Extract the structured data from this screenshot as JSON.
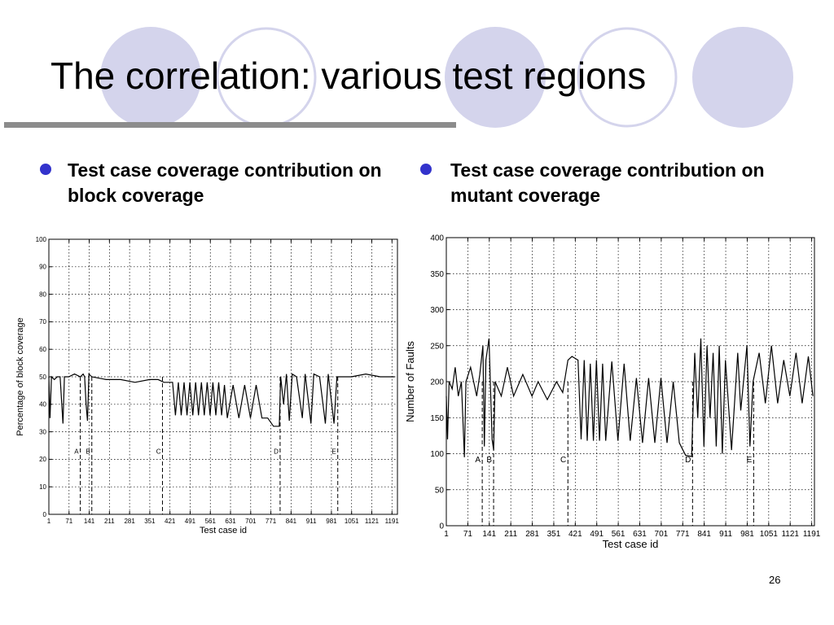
{
  "title": "The correlation: various test regions",
  "bullets": [
    "Test case coverage contribution on block coverage",
    "Test case coverage contribution on mutant coverage"
  ],
  "page_number": "26",
  "chart_data": [
    {
      "type": "line",
      "xlabel": "Test case id",
      "ylabel": "Percentage of block coverage",
      "xlim": [
        1,
        1210
      ],
      "ylim": [
        0,
        100
      ],
      "xticks": [
        1,
        71,
        141,
        211,
        281,
        351,
        421,
        491,
        561,
        631,
        701,
        771,
        841,
        911,
        981,
        1051,
        1121,
        1191
      ],
      "yticks": [
        0,
        10,
        20,
        30,
        40,
        50,
        60,
        70,
        80,
        90,
        100
      ],
      "grid": true,
      "annotations": [
        {
          "label": "A",
          "x": 110
        },
        {
          "label": "B",
          "x": 150
        },
        {
          "label": "C",
          "x": 395
        },
        {
          "label": "D",
          "x": 803
        },
        {
          "label": "E",
          "x": 1003
        }
      ],
      "series": [
        {
          "color": "#000000",
          "x": [
            1,
            5,
            10,
            20,
            30,
            40,
            50,
            55,
            70,
            90,
            110,
            120,
            125,
            130,
            135,
            140,
            150,
            200,
            250,
            300,
            350,
            380,
            400,
            420,
            430,
            440,
            450,
            460,
            470,
            480,
            490,
            500,
            510,
            520,
            530,
            540,
            550,
            560,
            570,
            580,
            590,
            600,
            610,
            620,
            640,
            660,
            680,
            700,
            720,
            740,
            760,
            780,
            800,
            805,
            815,
            825,
            835,
            845,
            860,
            880,
            890,
            910,
            920,
            940,
            960,
            970,
            990,
            1000,
            1050,
            1100,
            1150,
            1200
          ],
          "values": [
            50,
            35,
            50,
            49,
            50,
            50,
            33,
            50,
            50,
            51,
            50,
            51,
            50,
            40,
            34,
            51,
            50,
            49,
            49,
            48,
            49,
            49,
            48,
            48,
            48,
            36,
            48,
            36,
            48,
            36,
            48,
            36,
            48,
            36,
            48,
            36,
            48,
            36,
            48,
            36,
            48,
            36,
            47,
            35,
            47,
            35,
            47,
            35,
            47,
            35,
            35,
            32,
            32,
            50,
            40,
            51,
            34,
            51,
            50,
            35,
            51,
            33,
            51,
            50,
            33,
            51,
            33,
            50,
            50,
            51,
            50,
            50
          ]
        }
      ]
    },
    {
      "type": "line",
      "xlabel": "Test case id",
      "ylabel": "Number of Faults",
      "xlim": [
        1,
        1200
      ],
      "ylim": [
        0,
        400
      ],
      "xticks": [
        1,
        71,
        141,
        211,
        281,
        351,
        421,
        491,
        561,
        631,
        701,
        771,
        841,
        911,
        981,
        1051,
        1121,
        1191
      ],
      "yticks": [
        0,
        50,
        100,
        150,
        200,
        250,
        300,
        350,
        400
      ],
      "grid": true,
      "annotations": [
        {
          "label": "A",
          "x": 118
        },
        {
          "label": "B",
          "x": 155
        },
        {
          "label": "C",
          "x": 397
        },
        {
          "label": "D",
          "x": 803
        },
        {
          "label": "E",
          "x": 1002
        }
      ],
      "series": [
        {
          "color": "#000000",
          "x": [
            1,
            5,
            10,
            20,
            30,
            40,
            50,
            60,
            65,
            80,
            100,
            110,
            120,
            125,
            130,
            140,
            150,
            155,
            160,
            180,
            200,
            220,
            250,
            280,
            300,
            330,
            360,
            380,
            397,
            410,
            430,
            440,
            450,
            460,
            470,
            480,
            490,
            500,
            510,
            520,
            540,
            560,
            580,
            600,
            620,
            640,
            660,
            680,
            700,
            720,
            740,
            760,
            780,
            800,
            810,
            820,
            830,
            840,
            850,
            860,
            870,
            880,
            890,
            900,
            910,
            930,
            950,
            960,
            980,
            990,
            1000,
            1020,
            1040,
            1060,
            1080,
            1100,
            1120,
            1140,
            1160,
            1180,
            1195
          ],
          "values": [
            180,
            120,
            200,
            190,
            220,
            180,
            200,
            95,
            200,
            220,
            180,
            210,
            250,
            110,
            230,
            260,
            120,
            105,
            200,
            180,
            220,
            180,
            210,
            180,
            200,
            175,
            200,
            185,
            230,
            235,
            230,
            120,
            230,
            118,
            225,
            118,
            230,
            118,
            225,
            118,
            228,
            118,
            225,
            118,
            205,
            115,
            205,
            115,
            205,
            115,
            200,
            115,
            98,
            96,
            240,
            150,
            260,
            110,
            250,
            150,
            240,
            110,
            250,
            100,
            230,
            105,
            240,
            160,
            250,
            110,
            200,
            240,
            170,
            250,
            170,
            230,
            180,
            240,
            170,
            235,
            180
          ]
        }
      ]
    }
  ]
}
